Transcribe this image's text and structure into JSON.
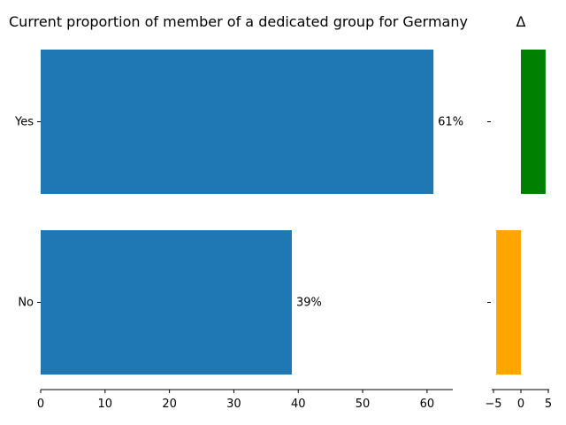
{
  "chart_data": [
    {
      "type": "bar",
      "orientation": "horizontal",
      "title": "Current proportion of member of a dedicated group for Germany",
      "categories": [
        "Yes",
        "No"
      ],
      "values": [
        61,
        39
      ],
      "data_labels": [
        "61%",
        "39%"
      ],
      "xlim": [
        0,
        64
      ],
      "xticks": [
        0,
        10,
        20,
        30,
        40,
        50,
        60
      ],
      "bar_color": "#1f77b4",
      "grid": false
    },
    {
      "type": "bar",
      "orientation": "horizontal",
      "title": "Δ",
      "categories": [
        "Yes",
        "No"
      ],
      "values": [
        4.5,
        -4.5
      ],
      "colors": [
        "#008000",
        "#ffa500"
      ],
      "xlim": [
        -5,
        5
      ],
      "xticks": [
        -5,
        0,
        5
      ],
      "xtick_labels": [
        "−5",
        "0",
        "5"
      ],
      "grid": false
    }
  ]
}
